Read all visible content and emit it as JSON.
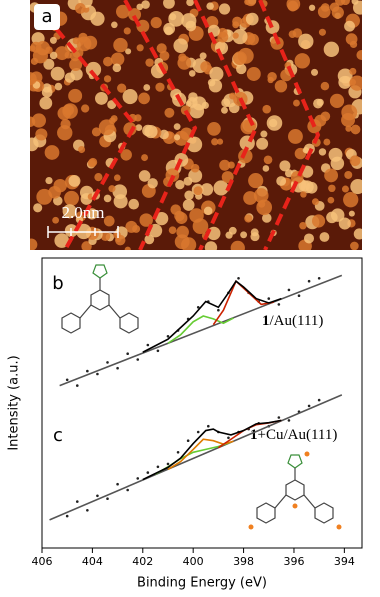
{
  "panel_labels": [
    "a",
    "b",
    "c"
  ],
  "scale_bar": "2.0nm",
  "chart_data": {
    "type": "xps",
    "x_label": "Binding Energy (eV)",
    "y_label": "Intensity (a.u.)",
    "xlim": [
      406,
      393.3
    ],
    "xticks": [
      406,
      404,
      402,
      400,
      398,
      396,
      394
    ],
    "ylim": [
      0,
      100
    ],
    "annotations": [
      {
        "bold": "1",
        "text": "/Au(111)"
      },
      {
        "bold": "1",
        "text": "+Cu/Au(111)"
      }
    ],
    "series": [
      {
        "kind": "scatter",
        "color": "#222222",
        "x": [
          405,
          404.6,
          404.2,
          403.8,
          403.4,
          403,
          402.6,
          402.2,
          401.8,
          401.4,
          401,
          400.6,
          400.2,
          399.8,
          399.4,
          399,
          398.6,
          398.2,
          397.8,
          397.4,
          397,
          396.6,
          396.2,
          395.8,
          395.4,
          395
        ],
        "values": [
          58,
          56,
          61,
          60,
          64,
          62,
          67,
          65,
          70,
          68,
          73,
          75,
          79,
          83,
          85,
          82,
          88,
          93,
          88,
          85,
          86,
          84,
          89,
          87,
          92,
          93
        ]
      },
      {
        "kind": "line",
        "color": "#555555",
        "x": [
          405.3,
          394.1
        ],
        "values": [
          56,
          94
        ]
      },
      {
        "kind": "line",
        "color": "#66cc33",
        "x": [
          401,
          400.5,
          400,
          399.6,
          399.2,
          398.8,
          398.4
        ],
        "values": [
          70.6,
          73.5,
          78,
          80,
          79,
          77.5,
          79.3
        ]
      },
      {
        "kind": "line",
        "color": "#cc2200",
        "x": [
          399.2,
          398.8,
          398.3,
          397.8,
          397.3,
          396.8
        ],
        "values": [
          77,
          82,
          92,
          88,
          84,
          84.8
        ]
      },
      {
        "kind": "line",
        "color": "#000000",
        "x": [
          402,
          401,
          400.5,
          400,
          399.5,
          399,
          398.6,
          398.3,
          398,
          397.5,
          397,
          396.5
        ],
        "values": [
          67.5,
          72,
          76,
          80,
          85,
          83,
          88,
          92,
          90,
          86,
          84.5,
          86
        ]
      },
      {
        "kind": "scatter",
        "color": "#222222",
        "x": [
          405,
          404.6,
          404.2,
          403.8,
          403.4,
          403,
          402.6,
          402.2,
          401.8,
          401.4,
          401,
          400.6,
          400.2,
          399.8,
          399.4,
          399,
          398.6,
          398.2,
          397.8,
          397.4,
          397,
          396.6,
          396.2,
          395.8,
          395.4,
          395
        ],
        "values": [
          11,
          16,
          13,
          18,
          17,
          22,
          20,
          24,
          26,
          28,
          29,
          33,
          37,
          40,
          42,
          40,
          38,
          40,
          41,
          43,
          42,
          45,
          44,
          47,
          49,
          51
        ]
      },
      {
        "kind": "line",
        "color": "#555555",
        "x": [
          405.7,
          394.1
        ],
        "values": [
          9.7,
          52.8
        ]
      },
      {
        "kind": "line",
        "color": "#66cc33",
        "x": [
          401.5,
          401,
          400.5,
          400,
          399.5,
          399,
          398.5
        ],
        "values": [
          25.5,
          28,
          30.8,
          33,
          34,
          35,
          36.5
        ]
      },
      {
        "kind": "line",
        "color": "#e07b00",
        "x": [
          401,
          400.5,
          400,
          399.6,
          399.2,
          398.8,
          398.4
        ],
        "values": [
          27.1,
          29.8,
          34,
          37.5,
          37,
          35.8,
          36.8
        ]
      },
      {
        "kind": "line",
        "color": "#cc2200",
        "x": [
          399,
          398.5,
          398,
          397.5,
          397,
          396.5
        ],
        "values": [
          34.6,
          37.5,
          40.5,
          42.5,
          43.1,
          44
        ]
      },
      {
        "kind": "line",
        "color": "#000000",
        "x": [
          402,
          401,
          400.5,
          400,
          399.5,
          399.2,
          399,
          398.5,
          398,
          397.5,
          397,
          396.5
        ],
        "values": [
          23.6,
          27.8,
          31,
          36,
          40.5,
          41,
          40,
          39,
          40.5,
          42.8,
          43.2,
          44
        ]
      }
    ]
  }
}
